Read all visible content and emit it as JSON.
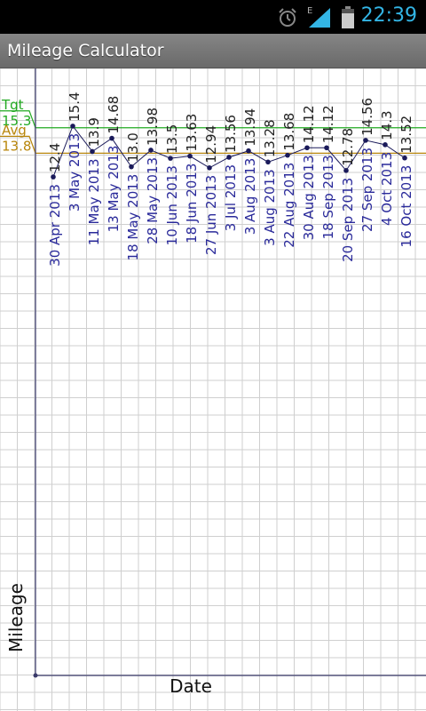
{
  "status": {
    "time": "22:39",
    "network": "E"
  },
  "app": {
    "title": "Mileage Calculator"
  },
  "colors": {
    "target": "#22aa22",
    "average": "#b8860b",
    "line": "#1a1a5a",
    "dates": "#2a2a9a"
  },
  "chart_data": {
    "type": "line",
    "xlabel": "Date",
    "ylabel": "Mileage",
    "ylim": [
      -17,
      18.8
    ],
    "x": [
      "30 Apr 2013",
      "3 May 2013",
      "11 May 2013",
      "13 May 2013",
      "18 May 2013",
      "28 May 2013",
      "10 Jun 2013",
      "18 Jun 2013",
      "27 Jun 2013",
      "3 Jul 2013",
      "3 Aug 2013",
      "3 Aug 2013",
      "22 Aug 2013",
      "30 Aug 2013",
      "18 Sep 2013",
      "20 Sep 2013",
      "27 Sep 2013",
      "4 Oct 2013",
      "16 Oct 2013"
    ],
    "values": [
      "12.4",
      "15.4",
      "13.9",
      "14.68",
      "13.0",
      "13.98",
      "13.5",
      "13.63",
      "12.94",
      "13.56",
      "13.94",
      "13.28",
      "13.68",
      "14.12",
      "14.12",
      "12.78",
      "14.56",
      "14.3",
      "13.52"
    ],
    "reference_lines": [
      {
        "label": "Tgt",
        "value": "15.3"
      },
      {
        "label": "Avg",
        "value": "13.8"
      }
    ],
    "grid": true
  }
}
